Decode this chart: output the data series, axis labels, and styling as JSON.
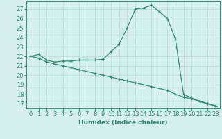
{
  "line1_x": [
    0,
    1,
    2,
    3,
    4,
    5,
    6,
    7,
    8,
    9,
    10,
    11,
    12,
    13,
    14,
    15,
    16,
    17,
    18,
    19,
    20,
    21,
    22,
    23
  ],
  "line1_y": [
    22.0,
    22.2,
    21.6,
    21.4,
    21.5,
    21.5,
    21.6,
    21.6,
    21.6,
    21.7,
    22.5,
    23.3,
    25.0,
    27.0,
    27.1,
    27.4,
    26.7,
    26.0,
    23.8,
    18.0,
    17.6,
    17.2,
    17.0,
    16.8
  ],
  "line2_x": [
    0,
    1,
    2,
    3,
    4,
    5,
    6,
    7,
    8,
    9,
    10,
    11,
    12,
    13,
    14,
    15,
    16,
    17,
    18,
    19,
    20,
    21,
    22,
    23
  ],
  "line2_y": [
    22.0,
    21.8,
    21.4,
    21.2,
    21.0,
    20.8,
    20.6,
    20.4,
    20.2,
    20.0,
    19.8,
    19.6,
    19.4,
    19.2,
    19.0,
    18.8,
    18.6,
    18.4,
    18.0,
    17.7,
    17.5,
    17.3,
    17.0,
    16.7
  ],
  "line_color": "#2e8b6e",
  "bg_color": "#d6f0f0",
  "grid_color": "#b8dede",
  "xlabel": "Humidex (Indice chaleur)",
  "ylim": [
    16.5,
    27.8
  ],
  "xlim": [
    -0.5,
    23.5
  ],
  "yticks": [
    17,
    18,
    19,
    20,
    21,
    22,
    23,
    24,
    25,
    26,
    27
  ],
  "xticks": [
    0,
    1,
    2,
    3,
    4,
    5,
    6,
    7,
    8,
    9,
    10,
    11,
    12,
    13,
    14,
    15,
    16,
    17,
    18,
    19,
    20,
    21,
    22,
    23
  ],
  "axis_fontsize": 6.5,
  "tick_fontsize": 6.0
}
